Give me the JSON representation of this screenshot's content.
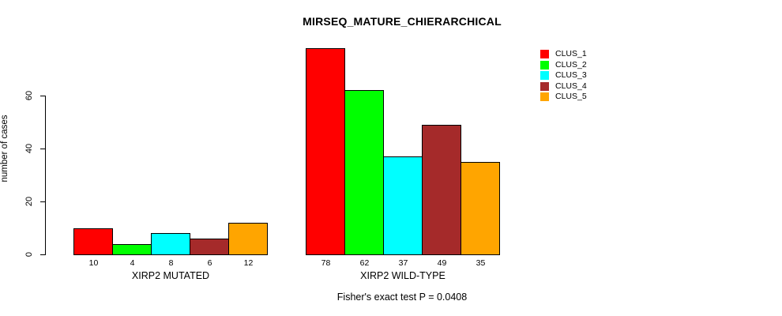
{
  "title": "MIRSEQ_MATURE_CHIERARCHICAL",
  "note": "Fisher's exact test P = 0.0408",
  "y_axis": {
    "label": "number of cases",
    "ticks": [
      0,
      20,
      40,
      60
    ]
  },
  "legend": {
    "entries": [
      {
        "label": "CLUS_1",
        "color": "#FF0000"
      },
      {
        "label": "CLUS_2",
        "color": "#00FF00"
      },
      {
        "label": "CLUS_3",
        "color": "#00FFFF"
      },
      {
        "label": "CLUS_4",
        "color": "#A52A2A"
      },
      {
        "label": "CLUS_5",
        "color": "#FFA500"
      }
    ]
  },
  "chart_data": {
    "type": "bar",
    "title": "MIRSEQ_MATURE_CHIERARCHICAL",
    "ylabel": "number of cases",
    "xlabel": "",
    "ylim": [
      0,
      80
    ],
    "yticks": [
      0,
      20,
      40,
      60
    ],
    "grid": false,
    "legend_position": "top-right",
    "series_labels": [
      "CLUS_1",
      "CLUS_2",
      "CLUS_3",
      "CLUS_4",
      "CLUS_5"
    ],
    "colors": [
      "#FF0000",
      "#00FF00",
      "#00FFFF",
      "#A52A2A",
      "#FFA500"
    ],
    "groups": [
      {
        "label": "XIRP2 MUTATED",
        "values": [
          10,
          4,
          8,
          6,
          12
        ]
      },
      {
        "label": "XIRP2 WILD-TYPE",
        "values": [
          78,
          62,
          37,
          49,
          35
        ]
      }
    ],
    "bar_value_labels_shown": true,
    "annotation": "Fisher's exact test P = 0.0408"
  }
}
